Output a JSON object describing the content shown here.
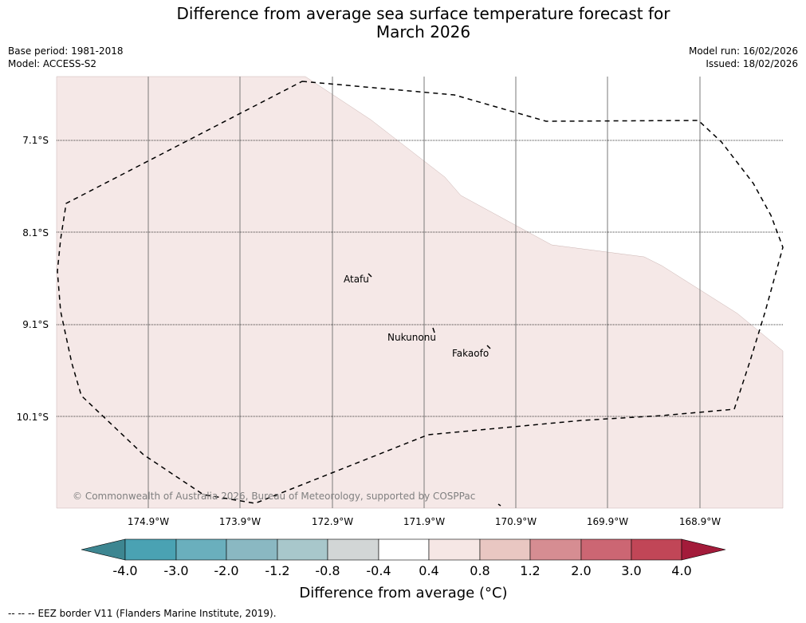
{
  "title": {
    "line1": "Difference from average sea surface temperature forecast for",
    "line2": "March 2026"
  },
  "header_left": {
    "base_period": "Base period: 1981-2018",
    "model": "Model: ACCESS-S2"
  },
  "header_right": {
    "model_run": "Model run: 16/02/2026",
    "issued": "Issued: 18/02/2026"
  },
  "map": {
    "lat_labels": [
      "7.1°S",
      "8.1°S",
      "9.1°S",
      "10.1°S"
    ],
    "lon_labels": [
      "174.9°W",
      "173.9°W",
      "172.9°W",
      "171.9°W",
      "170.9°W",
      "169.9°W",
      "168.9°W"
    ],
    "places": [
      {
        "name": "Atafu"
      },
      {
        "name": "Nukunonu"
      },
      {
        "name": "Fakaofo"
      }
    ],
    "copyright": "© Commonwealth of Australia 2026, Bureau of Meteorology, supported by COSPPac",
    "fill_color": "#f5e8e7",
    "eez_color": "#000000"
  },
  "colorbar": {
    "title": "Difference from average (°C)",
    "ticks": [
      "-4.0",
      "-3.0",
      "-2.0",
      "-1.2",
      "-0.8",
      "-0.4",
      "0.4",
      "0.8",
      "1.2",
      "2.0",
      "3.0",
      "4.0"
    ],
    "colors": [
      "#3d8691",
      "#4aa2b3",
      "#6aafbd",
      "#8ab8c2",
      "#a8c7cb",
      "#d2d6d6",
      "#ffffff",
      "#f6e7e5",
      "#e9c7c2",
      "#d68d92",
      "#cc6673",
      "#c14657",
      "#a31b3a"
    ]
  },
  "legend": {
    "symbol": "--  --  --",
    "text": "EEZ border V11 (Flanders Marine Institute, 2019)."
  }
}
